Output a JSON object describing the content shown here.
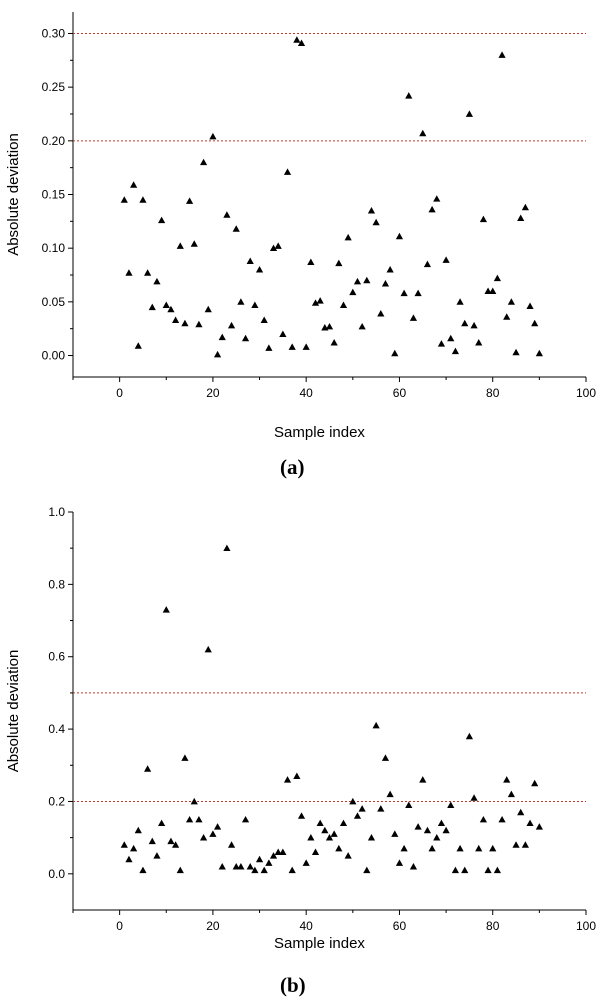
{
  "figure": {
    "panel_labels": [
      "(a)",
      "(b)"
    ]
  },
  "chart_data": [
    {
      "type": "scatter",
      "panel": "(a)",
      "xlabel": "Sample index",
      "ylabel": "Absolute deviation",
      "xlim": [
        -10,
        100
      ],
      "ylim": [
        -0.02,
        0.32
      ],
      "xticks": [
        0,
        20,
        40,
        60,
        80,
        100
      ],
      "yticks": [
        0.0,
        0.05,
        0.1,
        0.15,
        0.2,
        0.25,
        0.3
      ],
      "ytick_decimals": 2,
      "grid": false,
      "marker": "filled-triangle",
      "marker_color": "#000000",
      "reference_lines": [
        {
          "y": 0.3,
          "style": "dotted",
          "color": "#c0392b"
        },
        {
          "y": 0.2,
          "style": "dotted",
          "color": "#c0392b"
        }
      ],
      "x": [
        1,
        2,
        3,
        4,
        5,
        6,
        7,
        8,
        9,
        10,
        11,
        12,
        13,
        14,
        15,
        16,
        17,
        18,
        19,
        20,
        21,
        22,
        23,
        24,
        25,
        26,
        27,
        28,
        29,
        30,
        31,
        32,
        33,
        34,
        35,
        36,
        37,
        38,
        39,
        40,
        41,
        42,
        43,
        44,
        45,
        46,
        47,
        48,
        49,
        50,
        51,
        52,
        53,
        54,
        55,
        56,
        57,
        58,
        59,
        60,
        61,
        62,
        63,
        64,
        65,
        66,
        67,
        68,
        69,
        70,
        71,
        72,
        73,
        74,
        75,
        76,
        77,
        78,
        79,
        80,
        81,
        82,
        83,
        84,
        85,
        86,
        87,
        88,
        89,
        90
      ],
      "y": [
        0.145,
        0.077,
        0.159,
        0.009,
        0.145,
        0.077,
        0.045,
        0.069,
        0.126,
        0.047,
        0.043,
        0.033,
        0.102,
        0.03,
        0.144,
        0.104,
        0.029,
        0.18,
        0.043,
        0.204,
        0.001,
        0.017,
        0.131,
        0.028,
        0.118,
        0.05,
        0.016,
        0.088,
        0.047,
        0.08,
        0.033,
        0.007,
        0.1,
        0.102,
        0.02,
        0.171,
        0.008,
        0.294,
        0.291,
        0.008,
        0.087,
        0.049,
        0.051,
        0.026,
        0.027,
        0.012,
        0.086,
        0.047,
        0.11,
        0.059,
        0.069,
        0.027,
        0.07,
        0.135,
        0.124,
        0.039,
        0.067,
        0.08,
        0.002,
        0.111,
        0.058,
        0.242,
        0.035,
        0.058,
        0.207,
        0.085,
        0.136,
        0.146,
        0.011,
        0.089,
        0.016,
        0.004,
        0.05,
        0.03,
        0.225,
        0.028,
        0.012,
        0.127,
        0.06,
        0.06,
        0.072,
        0.28,
        0.036,
        0.05,
        0.003,
        0.128,
        0.138,
        0.046,
        0.03,
        0.002
      ]
    },
    {
      "type": "scatter",
      "panel": "(b)",
      "xlabel": "Sample index",
      "ylabel": "Absolute deviation",
      "xlim": [
        -10,
        100
      ],
      "ylim": [
        -0.1,
        1.0
      ],
      "xticks": [
        0,
        20,
        40,
        60,
        80,
        100
      ],
      "yticks": [
        0.0,
        0.2,
        0.4,
        0.6,
        0.8,
        1.0
      ],
      "ytick_decimals": 1,
      "grid": false,
      "marker": "filled-triangle",
      "marker_color": "#000000",
      "reference_lines": [
        {
          "y": 0.5,
          "style": "dotted",
          "color": "#c0392b"
        },
        {
          "y": 0.2,
          "style": "dotted",
          "color": "#c0392b"
        }
      ],
      "x": [
        1,
        2,
        3,
        4,
        5,
        6,
        7,
        8,
        9,
        10,
        11,
        12,
        13,
        14,
        15,
        16,
        17,
        18,
        19,
        20,
        21,
        22,
        23,
        24,
        25,
        26,
        27,
        28,
        29,
        30,
        31,
        32,
        33,
        34,
        35,
        36,
        37,
        38,
        39,
        40,
        41,
        42,
        43,
        44,
        45,
        46,
        47,
        48,
        49,
        50,
        51,
        52,
        53,
        54,
        55,
        56,
        57,
        58,
        59,
        60,
        61,
        62,
        63,
        64,
        65,
        66,
        67,
        68,
        69,
        70,
        71,
        72,
        73,
        74,
        75,
        76,
        77,
        78,
        79,
        80,
        81,
        82,
        83,
        84,
        85,
        86,
        87,
        88,
        89,
        90
      ],
      "y": [
        0.08,
        0.04,
        0.07,
        0.12,
        0.01,
        0.29,
        0.09,
        0.05,
        0.14,
        0.73,
        0.09,
        0.08,
        0.01,
        0.32,
        0.15,
        0.2,
        0.15,
        0.1,
        0.62,
        0.11,
        0.13,
        0.02,
        0.9,
        0.08,
        0.02,
        0.02,
        0.15,
        0.02,
        0.01,
        0.04,
        0.01,
        0.03,
        0.05,
        0.06,
        0.06,
        0.26,
        0.01,
        0.27,
        0.16,
        0.03,
        0.1,
        0.06,
        0.14,
        0.12,
        0.1,
        0.11,
        0.07,
        0.14,
        0.05,
        0.2,
        0.16,
        0.18,
        0.01,
        0.1,
        0.41,
        0.18,
        0.32,
        0.22,
        0.11,
        0.03,
        0.07,
        0.19,
        0.02,
        0.13,
        0.26,
        0.12,
        0.07,
        0.1,
        0.14,
        0.12,
        0.19,
        0.01,
        0.07,
        0.01,
        0.38,
        0.21,
        0.07,
        0.15,
        0.01,
        0.07,
        0.01,
        0.15,
        0.26,
        0.22,
        0.08,
        0.17,
        0.08,
        0.14,
        0.25,
        0.13
      ]
    }
  ]
}
